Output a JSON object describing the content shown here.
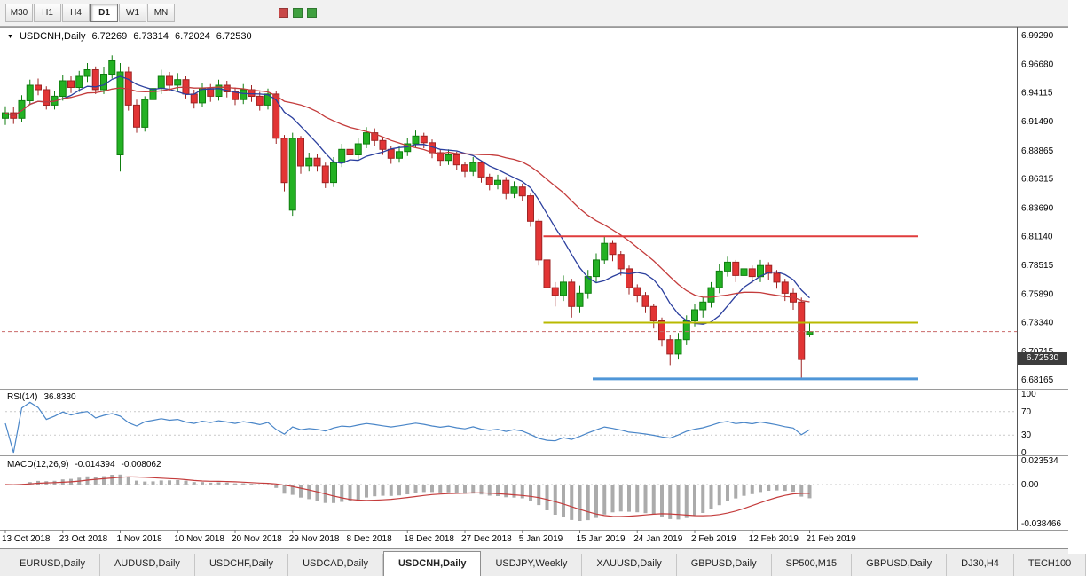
{
  "toolbar": {
    "timeframes": [
      "M30",
      "H1",
      "H4",
      "D1",
      "W1",
      "MN"
    ],
    "active_timeframe": "D1",
    "icons": [
      {
        "name": "toolbar-icon-red",
        "color": "#c84848"
      },
      {
        "name": "toolbar-icon-green-1",
        "color": "#3fa03f"
      },
      {
        "name": "toolbar-icon-green-2",
        "color": "#3fa03f"
      }
    ]
  },
  "chart_data": {
    "type": "candlestick",
    "symbol": "USDCNH",
    "period": "Daily",
    "title": {
      "symbol_period": "USDCNH,Daily",
      "open": "6.72269",
      "high": "6.73314",
      "low": "6.72024",
      "close": "6.72530"
    },
    "price_axis": {
      "labels": [
        "6.99290",
        "6.96680",
        "6.94115",
        "6.91490",
        "6.88865",
        "6.86315",
        "6.83690",
        "6.81140",
        "6.78515",
        "6.75890",
        "6.73340",
        "6.70715",
        "6.68165"
      ],
      "current": "6.72530"
    },
    "date_labels": [
      {
        "index": 0,
        "text": "13 Oct 2018"
      },
      {
        "index": 7,
        "text": "23 Oct 2018"
      },
      {
        "index": 14,
        "text": "1 Nov 2018"
      },
      {
        "index": 21,
        "text": "10 Nov 2018"
      },
      {
        "index": 28,
        "text": "20 Nov 2018"
      },
      {
        "index": 35,
        "text": "29 Nov 2018"
      },
      {
        "index": 42,
        "text": "8 Dec 2018"
      },
      {
        "index": 49,
        "text": "18 Dec 2018"
      },
      {
        "index": 56,
        "text": "27 Dec 2018"
      },
      {
        "index": 63,
        "text": "5 Jan 2019"
      },
      {
        "index": 70,
        "text": "15 Jan 2019"
      },
      {
        "index": 77,
        "text": "24 Jan 2019"
      },
      {
        "index": 84,
        "text": "2 Feb 2019"
      },
      {
        "index": 91,
        "text": "12 Feb 2019"
      },
      {
        "index": 98,
        "text": "21 Feb 2019"
      }
    ],
    "candles": [
      [
        6.918,
        6.929,
        6.912,
        6.923
      ],
      [
        6.923,
        6.928,
        6.913,
        6.918
      ],
      [
        6.918,
        6.939,
        6.915,
        6.934
      ],
      [
        6.934,
        6.953,
        6.93,
        6.948
      ],
      [
        6.948,
        6.954,
        6.939,
        6.944
      ],
      [
        6.944,
        6.947,
        6.926,
        6.93
      ],
      [
        6.93,
        6.943,
        6.926,
        6.938
      ],
      [
        6.938,
        6.957,
        6.934,
        6.952
      ],
      [
        6.952,
        6.956,
        6.941,
        6.946
      ],
      [
        6.946,
        6.961,
        6.942,
        6.956
      ],
      [
        6.956,
        6.968,
        6.951,
        6.962
      ],
      [
        6.962,
        6.965,
        6.94,
        6.944
      ],
      [
        6.944,
        6.964,
        6.94,
        6.958
      ],
      [
        6.958,
        6.975,
        6.954,
        6.97
      ],
      [
        6.885,
        6.968,
        6.87,
        6.96
      ],
      [
        6.96,
        6.965,
        6.925,
        6.93
      ],
      [
        6.93,
        6.935,
        6.905,
        6.91
      ],
      [
        6.91,
        6.938,
        6.906,
        6.935
      ],
      [
        6.935,
        6.95,
        6.93,
        6.945
      ],
      [
        6.945,
        6.962,
        6.94,
        6.956
      ],
      [
        6.956,
        6.96,
        6.943,
        6.948
      ],
      [
        6.948,
        6.959,
        6.943,
        6.953
      ],
      [
        6.953,
        6.956,
        6.936,
        6.94
      ],
      [
        6.94,
        6.944,
        6.927,
        6.932
      ],
      [
        6.932,
        6.95,
        6.928,
        6.945
      ],
      [
        6.945,
        6.949,
        6.933,
        6.938
      ],
      [
        6.938,
        6.953,
        6.934,
        6.948
      ],
      [
        6.948,
        6.952,
        6.937,
        6.942
      ],
      [
        6.942,
        6.946,
        6.93,
        6.935
      ],
      [
        6.935,
        6.949,
        6.931,
        6.944
      ],
      [
        6.944,
        6.948,
        6.933,
        6.938
      ],
      [
        6.938,
        6.942,
        6.925,
        6.93
      ],
      [
        6.93,
        6.945,
        6.926,
        6.94
      ],
      [
        6.94,
        6.943,
        6.895,
        6.9
      ],
      [
        6.9,
        6.903,
        6.852,
        6.86
      ],
      [
        6.835,
        6.905,
        6.83,
        6.9
      ],
      [
        6.9,
        6.902,
        6.868,
        6.875
      ],
      [
        6.875,
        6.887,
        6.87,
        6.882
      ],
      [
        6.882,
        6.886,
        6.87,
        6.875
      ],
      [
        6.875,
        6.878,
        6.855,
        6.86
      ],
      [
        6.86,
        6.883,
        6.856,
        6.878
      ],
      [
        6.878,
        6.895,
        6.874,
        6.89
      ],
      [
        6.89,
        6.895,
        6.88,
        6.885
      ],
      [
        6.885,
        6.9,
        6.881,
        6.895
      ],
      [
        6.895,
        6.91,
        6.891,
        6.905
      ],
      [
        6.905,
        6.909,
        6.893,
        6.898
      ],
      [
        6.898,
        6.901,
        6.885,
        6.89
      ],
      [
        6.89,
        6.893,
        6.877,
        6.882
      ],
      [
        6.882,
        6.893,
        6.878,
        6.888
      ],
      [
        6.888,
        6.9,
        6.884,
        6.895
      ],
      [
        6.895,
        6.907,
        6.891,
        6.902
      ],
      [
        6.902,
        6.905,
        6.891,
        6.896
      ],
      [
        6.896,
        6.899,
        6.882,
        6.887
      ],
      [
        6.887,
        6.89,
        6.875,
        6.88
      ],
      [
        6.88,
        6.89,
        6.876,
        6.885
      ],
      [
        6.885,
        6.888,
        6.871,
        6.876
      ],
      [
        6.876,
        6.879,
        6.865,
        6.87
      ],
      [
        6.87,
        6.883,
        6.866,
        6.878
      ],
      [
        6.878,
        6.88,
        6.86,
        6.865
      ],
      [
        6.865,
        6.868,
        6.853,
        6.858
      ],
      [
        6.858,
        6.867,
        6.854,
        6.862
      ],
      [
        6.862,
        6.865,
        6.845,
        6.85
      ],
      [
        6.85,
        6.861,
        6.846,
        6.856
      ],
      [
        6.856,
        6.859,
        6.843,
        6.848
      ],
      [
        6.848,
        6.85,
        6.82,
        6.825
      ],
      [
        6.825,
        6.827,
        6.785,
        6.79
      ],
      [
        6.79,
        6.793,
        6.758,
        6.765
      ],
      [
        6.765,
        6.77,
        6.748,
        6.758
      ],
      [
        6.758,
        6.776,
        6.753,
        6.77
      ],
      [
        6.77,
        6.773,
        6.738,
        6.748
      ],
      [
        6.748,
        6.767,
        6.742,
        6.76
      ],
      [
        6.76,
        6.781,
        6.755,
        6.775
      ],
      [
        6.775,
        6.796,
        6.77,
        6.79
      ],
      [
        6.79,
        6.812,
        6.786,
        6.805
      ],
      [
        6.805,
        6.808,
        6.789,
        6.795
      ],
      [
        6.795,
        6.798,
        6.776,
        6.782
      ],
      [
        6.782,
        6.785,
        6.759,
        6.765
      ],
      [
        6.765,
        6.768,
        6.752,
        6.758
      ],
      [
        6.758,
        6.761,
        6.742,
        6.748
      ],
      [
        6.748,
        6.75,
        6.728,
        6.735
      ],
      [
        6.735,
        6.738,
        6.712,
        6.718
      ],
      [
        6.718,
        6.722,
        6.695,
        6.705
      ],
      [
        6.705,
        6.724,
        6.7,
        6.718
      ],
      [
        6.718,
        6.74,
        6.713,
        6.735
      ],
      [
        6.735,
        6.75,
        6.73,
        6.745
      ],
      [
        6.745,
        6.756,
        6.738,
        6.752
      ],
      [
        6.752,
        6.77,
        6.747,
        6.765
      ],
      [
        6.765,
        6.786,
        6.76,
        6.78
      ],
      [
        6.78,
        6.793,
        6.775,
        6.788
      ],
      [
        6.788,
        6.79,
        6.77,
        6.776
      ],
      [
        6.776,
        6.788,
        6.772,
        6.782
      ],
      [
        6.782,
        6.785,
        6.769,
        6.775
      ],
      [
        6.775,
        6.79,
        6.77,
        6.785
      ],
      [
        6.785,
        6.788,
        6.772,
        6.778
      ],
      [
        6.778,
        6.781,
        6.764,
        6.77
      ],
      [
        6.77,
        6.773,
        6.753,
        6.76
      ],
      [
        6.76,
        6.764,
        6.745,
        6.752
      ],
      [
        6.752,
        6.756,
        6.682,
        6.7
      ],
      [
        6.72269,
        6.73314,
        6.72024,
        6.7253
      ]
    ],
    "colors": {
      "up": "#23b123",
      "up_border": "#0f7d0f",
      "down": "#e23434",
      "down_border": "#9e2323",
      "background": "#ffffff"
    },
    "moving_averages": [
      {
        "period": 8,
        "color": "#2b3f9e"
      },
      {
        "period": 20,
        "color": "#c43c3c"
      }
    ],
    "hlines": [
      {
        "name": "resistance-line",
        "price": 6.8114,
        "color": "#e03c3c",
        "width": 2,
        "start_index": 66
      },
      {
        "name": "mid-support-line",
        "price": 6.7334,
        "color": "#b9b900",
        "width": 2,
        "start_index": 66
      },
      {
        "name": "lower-support-line",
        "price": 6.6825,
        "color": "#4f96d8",
        "width": 3,
        "start_index": 72
      }
    ],
    "indicators": {
      "rsi": {
        "label": "RSI(14)",
        "current": "36.8330",
        "period": 14,
        "axis_labels": [
          "100",
          "70",
          "30",
          "0"
        ],
        "levels": [
          70,
          30
        ],
        "line_color": "#4a86c8"
      },
      "macd": {
        "label": "MACD(12,26,9)",
        "macd_value": "-0.014394",
        "signal_value": "-0.008062",
        "fast": 12,
        "slow": 26,
        "signal": 9,
        "axis_labels": [
          "0.023534",
          "0.00",
          "-0.038466"
        ],
        "range": [
          -0.038466,
          0.023534
        ],
        "hist_color": "#ababab",
        "signal_color": "#c43c3c"
      }
    }
  },
  "tabs": {
    "items": [
      "EURUSD,Daily",
      "AUDUSD,Daily",
      "USDCHF,Daily",
      "USDCAD,Daily",
      "USDCNH,Daily",
      "USDJPY,Weekly",
      "XAUUSD,Daily",
      "GBPUSD,Daily",
      "SP500,M15",
      "GBPUSD,Daily",
      "DJ30,H4",
      "TECH100"
    ],
    "active_index": 4
  }
}
